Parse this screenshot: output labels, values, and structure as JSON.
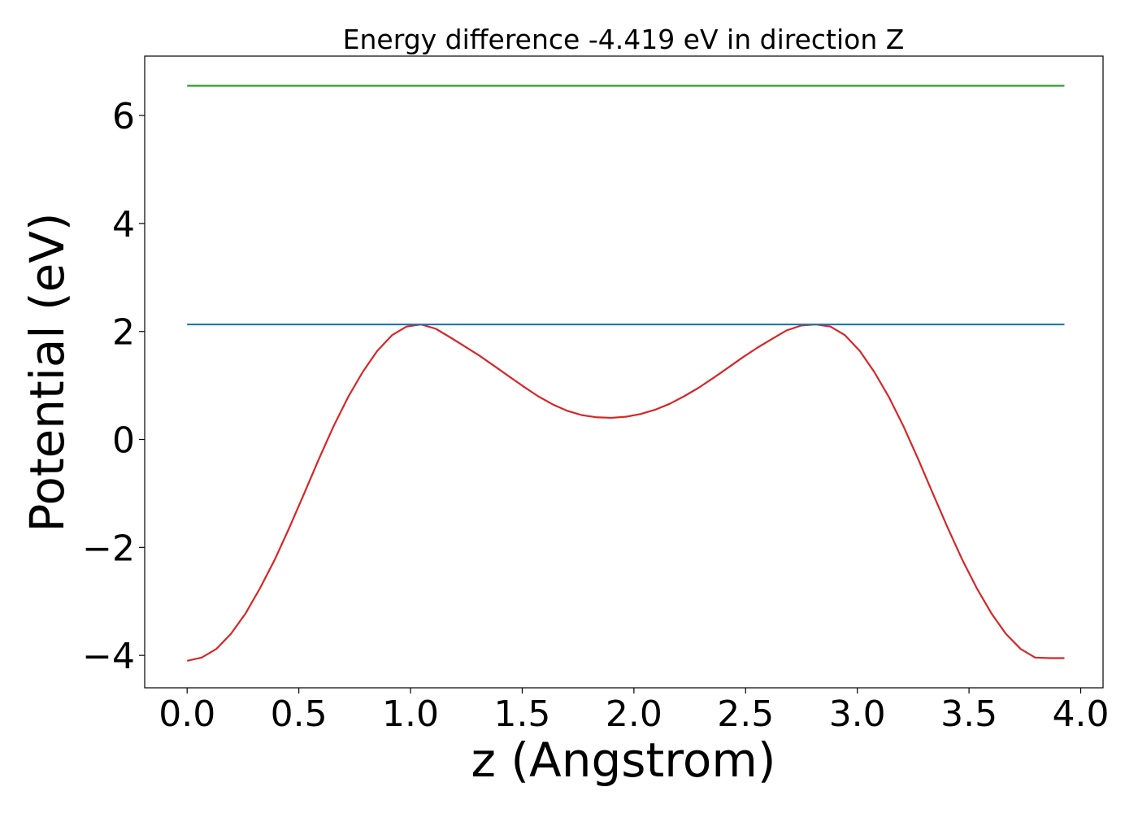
{
  "chart_data": {
    "type": "line",
    "title": "Energy difference -4.419 eV in direction Z",
    "xlabel": "z (Angstrom)",
    "ylabel": "Potential (eV)",
    "xlim": [
      -0.19,
      4.1
    ],
    "ylim": [
      -4.6,
      7.1
    ],
    "xticks": [
      0.0,
      0.5,
      1.0,
      1.5,
      2.0,
      2.5,
      3.0,
      3.5,
      4.0
    ],
    "xtick_labels": [
      "0.0",
      "0.5",
      "1.0",
      "1.5",
      "2.0",
      "2.5",
      "3.0",
      "3.5",
      "4.0"
    ],
    "yticks": [
      -4,
      -2,
      0,
      2,
      4,
      6
    ],
    "ytick_labels": [
      "−4",
      "−2",
      "0",
      "2",
      "4",
      "6"
    ],
    "grid": false,
    "series": [
      {
        "color": "#d62728",
        "x": [
          0.0,
          0.065,
          0.131,
          0.196,
          0.262,
          0.327,
          0.393,
          0.458,
          0.524,
          0.589,
          0.655,
          0.72,
          0.786,
          0.851,
          0.917,
          0.982,
          1.047,
          1.113,
          1.178,
          1.244,
          1.309,
          1.375,
          1.44,
          1.506,
          1.571,
          1.636,
          1.702,
          1.767,
          1.833,
          1.898,
          1.964,
          2.029,
          2.095,
          2.16,
          2.225,
          2.291,
          2.356,
          2.422,
          2.487,
          2.553,
          2.618,
          2.684,
          2.749,
          2.815,
          2.88,
          2.945,
          3.011,
          3.076,
          3.142,
          3.207,
          3.273,
          3.338,
          3.404,
          3.469,
          3.534,
          3.6,
          3.665,
          3.731,
          3.796,
          3.862,
          3.927
        ],
        "y": [
          -4.1,
          -4.04,
          -3.88,
          -3.6,
          -3.22,
          -2.75,
          -2.22,
          -1.63,
          -1.0,
          -0.37,
          0.24,
          0.78,
          1.25,
          1.64,
          1.93,
          2.09,
          2.13,
          2.05,
          1.89,
          1.72,
          1.55,
          1.36,
          1.17,
          0.98,
          0.8,
          0.65,
          0.53,
          0.45,
          0.41,
          0.4,
          0.42,
          0.47,
          0.55,
          0.66,
          0.8,
          0.96,
          1.14,
          1.33,
          1.52,
          1.7,
          1.86,
          2.02,
          2.11,
          2.13,
          2.09,
          1.93,
          1.64,
          1.25,
          0.78,
          0.24,
          -0.37,
          -1.0,
          -1.63,
          -2.22,
          -2.75,
          -3.22,
          -3.6,
          -3.88,
          -4.04,
          -4.05,
          -4.05
        ]
      },
      {
        "color": "#1f77b4",
        "x": [
          0.0,
          3.927
        ],
        "y": [
          2.13,
          2.13
        ]
      },
      {
        "color": "#2ca02c",
        "x": [
          0.0,
          3.927
        ],
        "y": [
          6.55,
          6.55
        ]
      }
    ]
  }
}
